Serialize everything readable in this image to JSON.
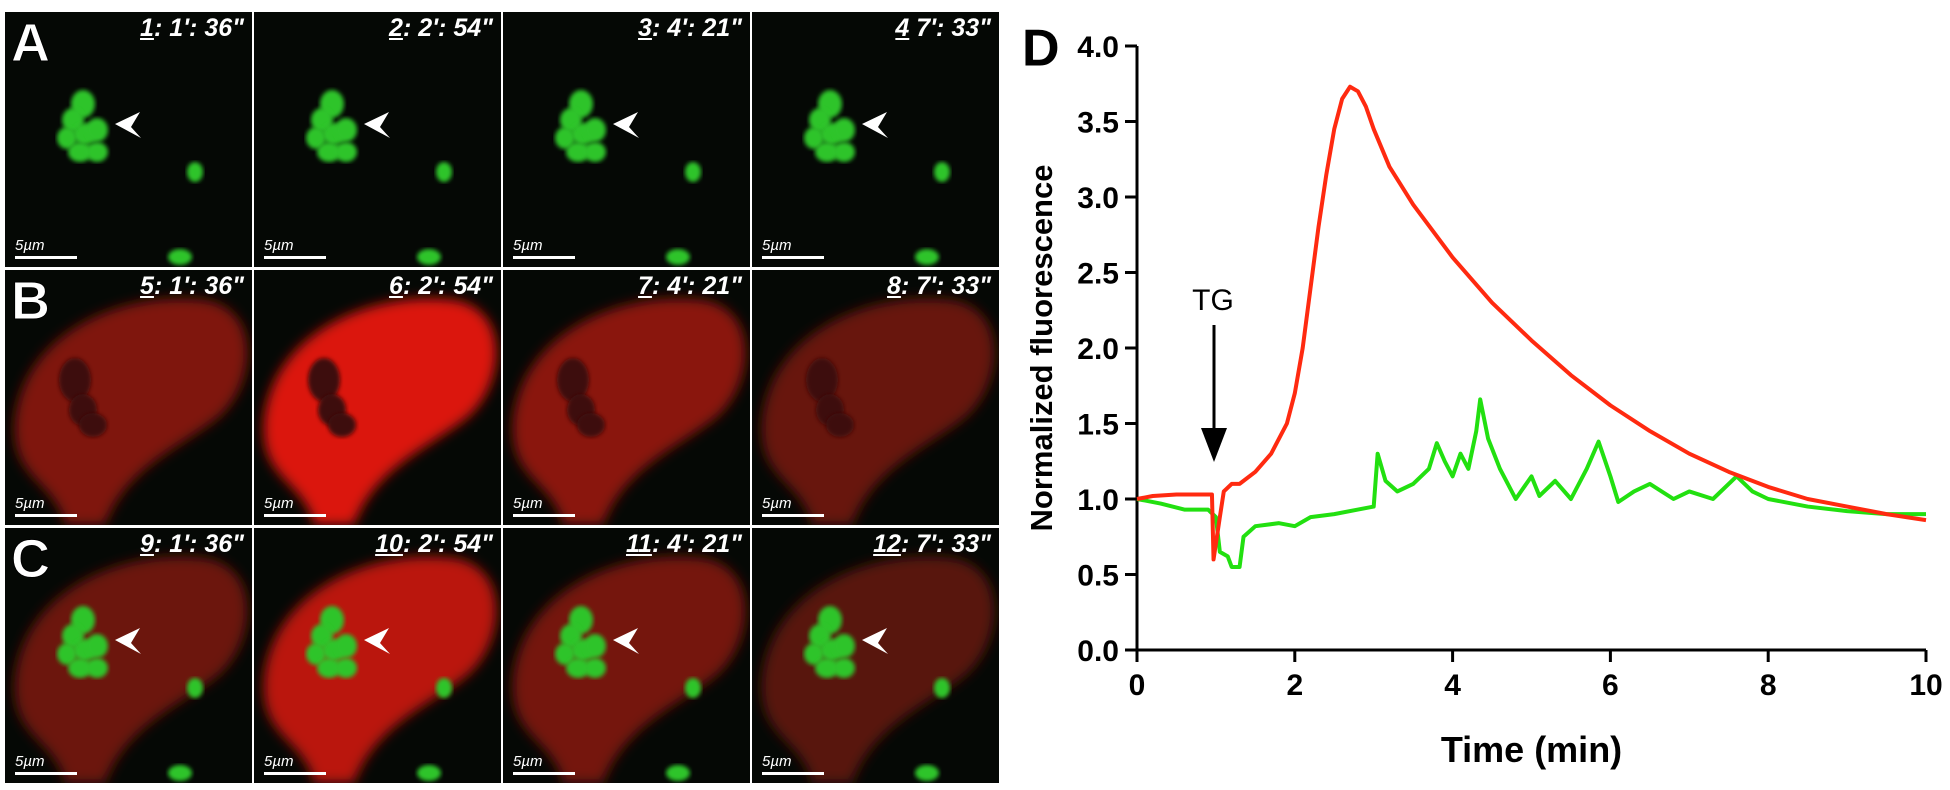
{
  "panels": {
    "rows": [
      {
        "label": "A",
        "frames": [
          {
            "number": "1",
            "time": ": 1': 36\"",
            "scale": "5µm"
          },
          {
            "number": "2",
            "time": ": 2': 54\"",
            "scale": "5µm"
          },
          {
            "number": "3",
            "time": ": 4': 21\"",
            "scale": "5µm"
          },
          {
            "number": "4",
            "time": " 7': 33\"",
            "scale": "5µm"
          }
        ]
      },
      {
        "label": "B",
        "frames": [
          {
            "number": "5",
            "time": ": 1': 36\"",
            "scale": "5µm"
          },
          {
            "number": "6",
            "time": ": 2': 54\"",
            "scale": "5µm"
          },
          {
            "number": "7",
            "time": ": 4': 21\"",
            "scale": "5µm"
          },
          {
            "number": "8",
            "time": ": 7': 33\"",
            "scale": "5µm"
          }
        ]
      },
      {
        "label": "C",
        "frames": [
          {
            "number": "9",
            "time": ": 1': 36\"",
            "scale": "5µm"
          },
          {
            "number": "10",
            "time": ": 2': 54\"",
            "scale": "5µm"
          },
          {
            "number": "11",
            "time": ": 4': 21\"",
            "scale": "5µm"
          },
          {
            "number": "12",
            "time": ": 7': 33\"",
            "scale": "5µm"
          }
        ]
      }
    ]
  },
  "chart_data": {
    "type": "line",
    "panel_label": "D",
    "annotation": "TG",
    "x_label": "Time (min)",
    "y_label": "Normalized fluorescence",
    "xlim": [
      0,
      10
    ],
    "ylim": [
      0,
      4
    ],
    "xticks": [
      0,
      2,
      4,
      6,
      8,
      10
    ],
    "yticks": [
      {
        "value": 0,
        "label": "0.0"
      },
      0.5,
      {
        "value": 1,
        "label": "1.0"
      },
      1.5,
      {
        "value": 2,
        "label": "2.0"
      },
      2.5,
      {
        "value": 3,
        "label": "3.0"
      },
      3.5,
      {
        "value": 4,
        "label": "4.0"
      }
    ],
    "series": [
      {
        "color": "#ff2a10",
        "x": [
          0,
          0.2,
          0.5,
          0.95,
          0.97,
          1.05,
          1.1,
          1.2,
          1.3,
          1.5,
          1.7,
          1.9,
          2.0,
          2.1,
          2.2,
          2.3,
          2.4,
          2.5,
          2.6,
          2.7,
          2.8,
          2.9,
          3.0,
          3.2,
          3.5,
          4.0,
          4.5,
          5.0,
          5.5,
          6.0,
          6.5,
          7.0,
          7.5,
          8.0,
          8.5,
          9.0,
          9.5,
          10
        ],
        "values": [
          1.0,
          1.02,
          1.03,
          1.03,
          0.6,
          0.88,
          1.05,
          1.1,
          1.1,
          1.18,
          1.3,
          1.5,
          1.7,
          2.0,
          2.4,
          2.8,
          3.15,
          3.45,
          3.65,
          3.73,
          3.7,
          3.6,
          3.45,
          3.2,
          2.95,
          2.6,
          2.3,
          2.05,
          1.82,
          1.62,
          1.45,
          1.3,
          1.18,
          1.08,
          1.0,
          0.95,
          0.9,
          0.86
        ]
      },
      {
        "color": "#22e010",
        "x": [
          0,
          0.3,
          0.6,
          0.9,
          1.0,
          1.05,
          1.15,
          1.2,
          1.3,
          1.35,
          1.5,
          1.8,
          2.0,
          2.2,
          2.5,
          2.8,
          3.0,
          3.05,
          3.15,
          3.3,
          3.5,
          3.7,
          3.8,
          3.9,
          4.0,
          4.1,
          4.2,
          4.3,
          4.35,
          4.45,
          4.6,
          4.8,
          5.0,
          5.1,
          5.3,
          5.5,
          5.7,
          5.85,
          6.0,
          6.1,
          6.3,
          6.5,
          6.8,
          7.0,
          7.3,
          7.6,
          7.8,
          8.0,
          8.5,
          9.0,
          9.5,
          10
        ],
        "values": [
          1.0,
          0.97,
          0.93,
          0.93,
          0.88,
          0.65,
          0.62,
          0.55,
          0.55,
          0.75,
          0.82,
          0.84,
          0.82,
          0.88,
          0.9,
          0.93,
          0.95,
          1.3,
          1.12,
          1.05,
          1.1,
          1.2,
          1.37,
          1.25,
          1.15,
          1.3,
          1.2,
          1.45,
          1.66,
          1.4,
          1.2,
          1.0,
          1.15,
          1.02,
          1.12,
          1.0,
          1.2,
          1.38,
          1.15,
          0.98,
          1.05,
          1.1,
          1.0,
          1.05,
          1.0,
          1.15,
          1.05,
          1.0,
          0.95,
          0.92,
          0.9,
          0.9
        ]
      }
    ]
  }
}
